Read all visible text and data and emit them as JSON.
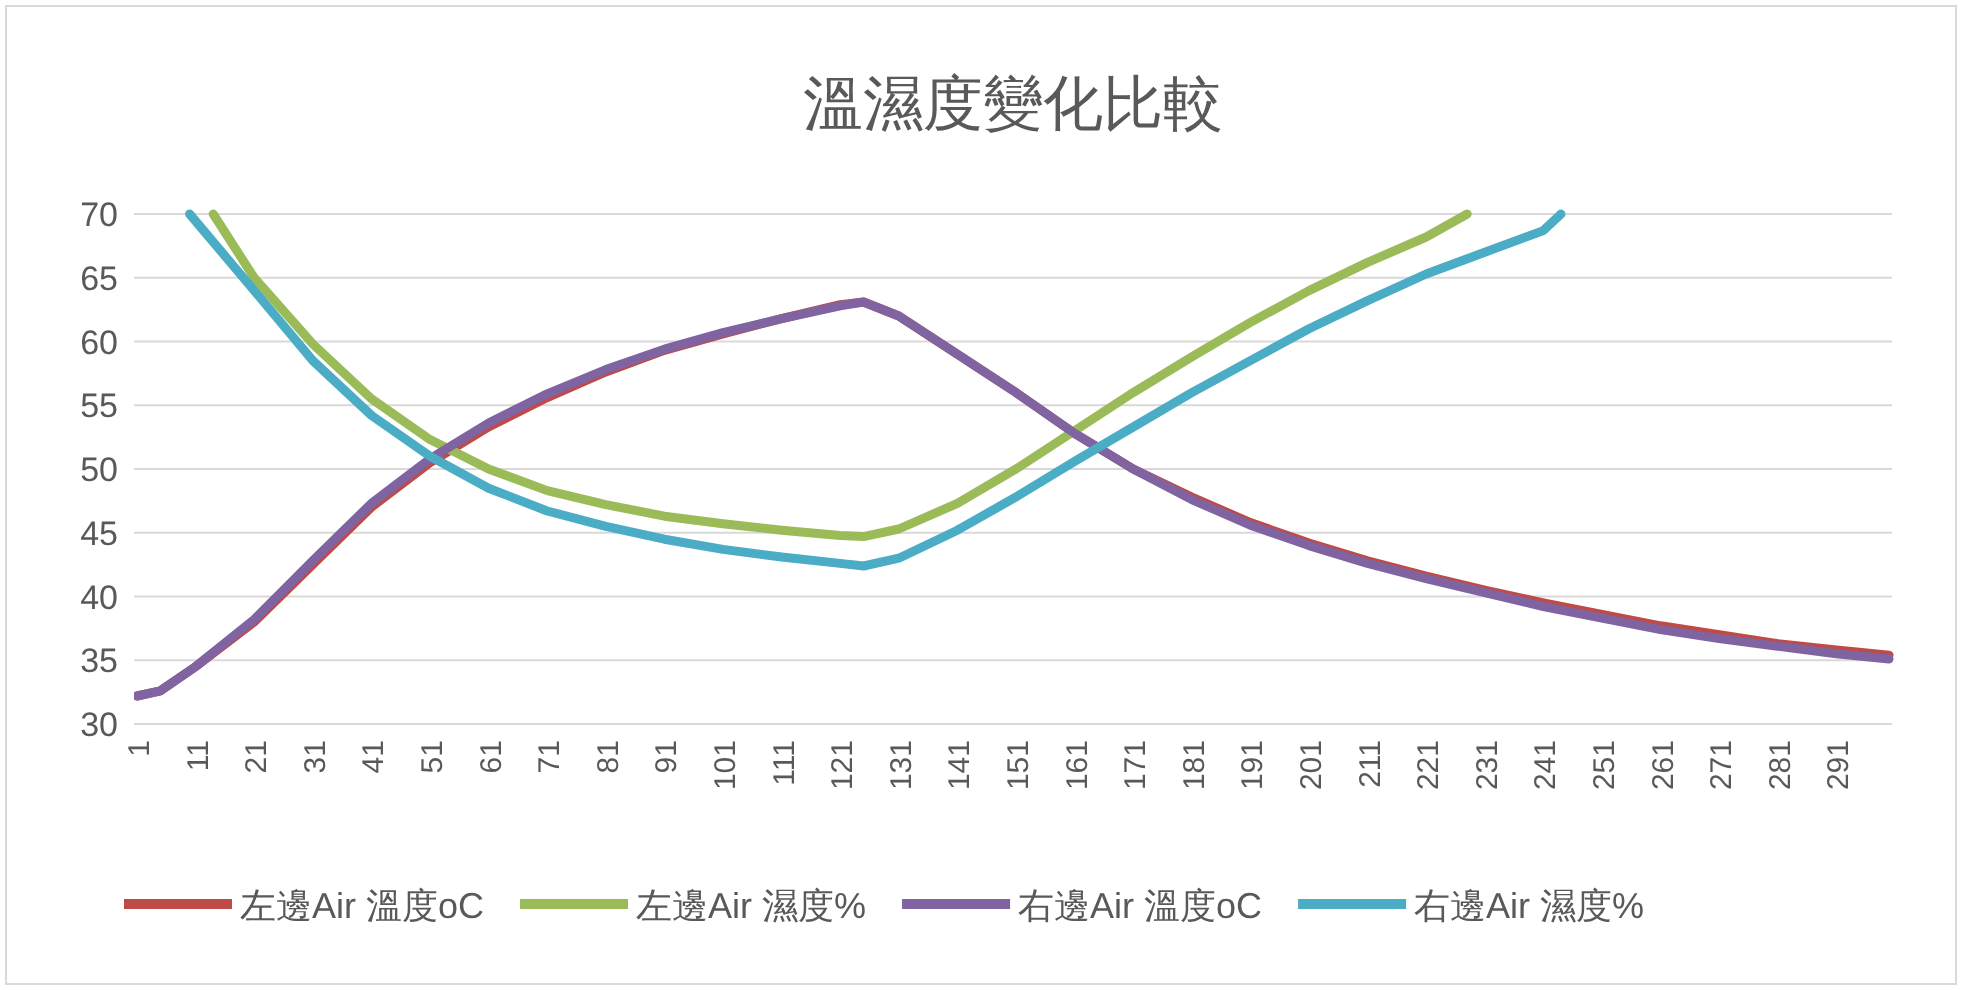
{
  "chart_data": {
    "type": "line",
    "title": "溫濕度變化比較",
    "legend": "bottom",
    "grid": "y",
    "marker": "none",
    "line_style": "solid",
    "xlim": [
      0.5,
      300.5
    ],
    "ylim": [
      30,
      70
    ],
    "yticks": [
      30,
      35,
      40,
      45,
      50,
      55,
      60,
      65,
      70
    ],
    "xticks": [
      1,
      11,
      21,
      31,
      41,
      51,
      61,
      71,
      81,
      91,
      101,
      111,
      121,
      131,
      141,
      151,
      161,
      171,
      181,
      191,
      201,
      211,
      221,
      231,
      241,
      251,
      261,
      271,
      281,
      291
    ],
    "series": [
      {
        "name": "左邊Air 溫度oC",
        "color": "#be4b48",
        "x": [
          1,
          5,
          11,
          21,
          31,
          41,
          51,
          61,
          71,
          81,
          91,
          101,
          111,
          121,
          125,
          131,
          141,
          151,
          161,
          171,
          181,
          191,
          201,
          211,
          221,
          231,
          241,
          251,
          261,
          271,
          281,
          291,
          300
        ],
        "values": [
          32.2,
          32.6,
          34.5,
          38,
          42.5,
          47,
          50.5,
          53.3,
          55.6,
          57.6,
          59.3,
          60.6,
          61.8,
          62.9,
          63.1,
          62,
          59,
          56,
          52.8,
          50,
          47.8,
          45.8,
          44.2,
          42.8,
          41.6,
          40.5,
          39.5,
          38.6,
          37.7,
          37,
          36.3,
          35.8,
          35.4
        ]
      },
      {
        "name": "左邊Air 濕度%",
        "color": "#9bbb59",
        "x": [
          14,
          21,
          31,
          41,
          51,
          61,
          71,
          81,
          91,
          101,
          111,
          121,
          125,
          131,
          141,
          151,
          161,
          171,
          181,
          191,
          201,
          211,
          221,
          228
        ],
        "values": [
          70,
          65,
          59.8,
          55.5,
          52.3,
          50,
          48.3,
          47.2,
          46.3,
          45.7,
          45.2,
          44.8,
          44.7,
          45.3,
          47.3,
          50,
          53,
          56,
          58.8,
          61.5,
          64,
          66.2,
          68.2,
          70
        ]
      },
      {
        "name": "右邊Air 溫度oC",
        "color": "#8064a2",
        "x": [
          1,
          5,
          11,
          21,
          31,
          41,
          51,
          61,
          71,
          81,
          91,
          101,
          111,
          121,
          125,
          131,
          141,
          151,
          161,
          171,
          181,
          191,
          201,
          211,
          221,
          231,
          241,
          251,
          261,
          271,
          281,
          291,
          300
        ],
        "values": [
          32.2,
          32.6,
          34.5,
          38.2,
          42.8,
          47.3,
          50.8,
          53.6,
          55.9,
          57.8,
          59.4,
          60.7,
          61.8,
          62.8,
          63.1,
          62,
          59,
          56,
          52.8,
          50,
          47.6,
          45.6,
          44,
          42.6,
          41.4,
          40.3,
          39.2,
          38.3,
          37.4,
          36.7,
          36.1,
          35.5,
          35.1
        ]
      },
      {
        "name": "右邊Air 濕度%",
        "color": "#4bacc6",
        "x": [
          10,
          21,
          31,
          41,
          51,
          61,
          71,
          81,
          91,
          101,
          111,
          121,
          125,
          131,
          141,
          151,
          161,
          171,
          181,
          191,
          201,
          211,
          221,
          231,
          241,
          244
        ],
        "values": [
          70,
          64,
          58.5,
          54.2,
          51,
          48.5,
          46.7,
          45.5,
          44.5,
          43.7,
          43.1,
          42.6,
          42.4,
          43,
          45.2,
          47.8,
          50.6,
          53.3,
          56,
          58.5,
          61,
          63.2,
          65.3,
          67,
          68.7,
          70
        ]
      }
    ]
  }
}
